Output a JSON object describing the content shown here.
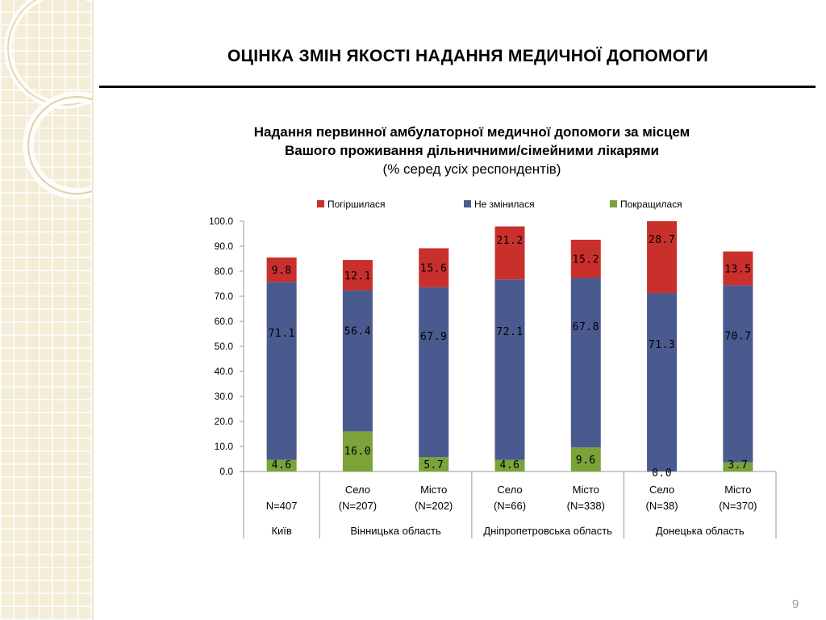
{
  "slide": {
    "title": "ОЦІНКА ЗМІН ЯКОСТІ НАДАННЯ МЕДИЧНОЇ ДОПОМОГИ",
    "page_number": "9"
  },
  "chart_data": {
    "type": "bar",
    "stacked": true,
    "title_line1": "Надання первинної амбулаторної медичної допомоги за місцем",
    "title_line2": "Вашого проживання дільничними/сімейними лікарями",
    "subtitle": "(% серед усіх респондентів)",
    "ylim": [
      0,
      100
    ],
    "yticks": [
      "0.0",
      "10.0",
      "20.0",
      "30.0",
      "40.0",
      "50.0",
      "60.0",
      "70.0",
      "80.0",
      "90.0",
      "100.0"
    ],
    "legend_position": "top",
    "categories": [
      {
        "place": "",
        "n": "N=407",
        "region": "Київ"
      },
      {
        "place": "Село",
        "n": "(N=207)",
        "region": "Вінницька область"
      },
      {
        "place": "Місто",
        "n": "(N=202)",
        "region": "Вінницька область"
      },
      {
        "place": "Село",
        "n": "(N=66)",
        "region": "Дніпропетровська область"
      },
      {
        "place": "Місто",
        "n": "(N=338)",
        "region": "Дніпропетровська область"
      },
      {
        "place": "Село",
        "n": "(N=38)",
        "region": "Донецька область"
      },
      {
        "place": "Місто",
        "n": "(N=370)",
        "region": "Донецька область"
      }
    ],
    "regions": [
      {
        "name": "Київ",
        "span": 1
      },
      {
        "name": "Вінницька область",
        "span": 2
      },
      {
        "name": "Дніпропетровська область",
        "span": 2
      },
      {
        "name": "Донецька область",
        "span": 2
      }
    ],
    "series": [
      {
        "name": "Покращилася",
        "color": "#7ba33a",
        "values": [
          4.6,
          16.0,
          5.7,
          4.6,
          9.6,
          0.0,
          3.7
        ]
      },
      {
        "name": "Не змінилася",
        "color": "#4a5a8f",
        "values": [
          71.1,
          56.4,
          67.9,
          72.1,
          67.8,
          71.3,
          70.7
        ]
      },
      {
        "name": "Погіршилася",
        "color": "#c9302c",
        "values": [
          9.8,
          12.1,
          15.6,
          21.2,
          15.2,
          28.7,
          13.5
        ]
      }
    ],
    "legend_order": [
      "Погіршилася",
      "Не змінилася",
      "Покращилася"
    ]
  }
}
